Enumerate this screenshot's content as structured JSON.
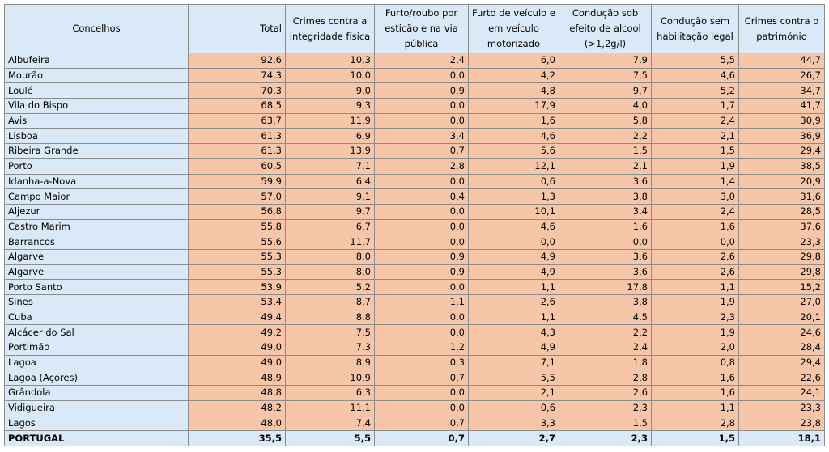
{
  "table": {
    "header": [
      "Concelhos",
      "Total",
      "Crimes contra a integridade física",
      "Furto/roubo por esticão e na via pública",
      "Furto de veículo e em veículo motorizado",
      "Condução sob efeito de alcool (>1,2g/l)",
      "Condução sem habilitação legal",
      "Crimes contra o património"
    ],
    "rows": [
      [
        "Albufeira",
        "92,6",
        "10,3",
        "2,4",
        "6,0",
        "7,9",
        "5,5",
        "44,7"
      ],
      [
        "Mourão",
        "74,3",
        "10,0",
        "0,0",
        "4,2",
        "7,5",
        "4,6",
        "26,7"
      ],
      [
        "Loulé",
        "70,3",
        "9,0",
        "0,9",
        "4,8",
        "9,7",
        "5,2",
        "34,7"
      ],
      [
        "Vila do Bispo",
        "68,5",
        "9,3",
        "0,0",
        "17,9",
        "4,0",
        "1,7",
        "41,7"
      ],
      [
        "Avis",
        "63,7",
        "11,9",
        "0,0",
        "1,6",
        "5,8",
        "2,4",
        "30,9"
      ],
      [
        "Lisboa",
        "61,3",
        "6,9",
        "3,4",
        "4,6",
        "2,2",
        "2,1",
        "36,9"
      ],
      [
        "Ribeira Grande",
        "61,3",
        "13,9",
        "0,7",
        "5,6",
        "1,5",
        "1,5",
        "29,4"
      ],
      [
        "Porto",
        "60,5",
        "7,1",
        "2,8",
        "12,1",
        "2,1",
        "1,9",
        "38,5"
      ],
      [
        "Idanha-a-Nova",
        "59,9",
        "6,4",
        "0,0",
        "0,6",
        "3,6",
        "1,4",
        "20,9"
      ],
      [
        "Campo Maior",
        "57,0",
        "9,1",
        "0,4",
        "1,3",
        "3,8",
        "3,0",
        "31,6"
      ],
      [
        "Aljezur",
        "56,8",
        "9,7",
        "0,0",
        "10,1",
        "3,4",
        "2,4",
        "28,5"
      ],
      [
        "Castro Marim",
        "55,8",
        "6,7",
        "0,0",
        "4,6",
        "1,6",
        "1,6",
        "37,6"
      ],
      [
        "Barrancos",
        "55,6",
        "11,7",
        "0,0",
        "0,0",
        "0,0",
        "0,0",
        "23,3"
      ],
      [
        "Algarve",
        "55,3",
        "8,0",
        "0,9",
        "4,9",
        "3,6",
        "2,6",
        "29,8"
      ],
      [
        "Algarve",
        "55,3",
        "8,0",
        "0,9",
        "4,9",
        "3,6",
        "2,6",
        "29,8"
      ],
      [
        "Porto Santo",
        "53,9",
        "5,2",
        "0,0",
        "1,1",
        "17,8",
        "1,1",
        "15,2"
      ],
      [
        "Sines",
        "53,4",
        "8,7",
        "1,1",
        "2,6",
        "3,8",
        "1,9",
        "27,0"
      ],
      [
        "Cuba",
        "49,4",
        "8,8",
        "0,0",
        "1,1",
        "4,5",
        "2,3",
        "20,1"
      ],
      [
        "Alcácer do Sal",
        "49,2",
        "7,5",
        "0,0",
        "4,3",
        "2,2",
        "1,9",
        "24,6"
      ],
      [
        "Portimão",
        "49,0",
        "7,3",
        "1,2",
        "4,9",
        "2,4",
        "2,0",
        "28,4"
      ],
      [
        "Lagoa",
        "49,0",
        "8,9",
        "0,3",
        "7,1",
        "1,8",
        "0,8",
        "29,4"
      ],
      [
        "Lagoa (Açores)",
        "48,9",
        "10,9",
        "0,7",
        "5,5",
        "2,8",
        "1,6",
        "22,6"
      ],
      [
        "Grândola",
        "48,8",
        "6,3",
        "0,0",
        "2,1",
        "2,6",
        "1,6",
        "24,1"
      ],
      [
        "Vidigueira",
        "48,2",
        "11,1",
        "0,0",
        "0,6",
        "2,3",
        "1,1",
        "23,3"
      ],
      [
        "Lagos",
        "48,0",
        "7,4",
        "0,7",
        "3,3",
        "1,5",
        "2,8",
        "23,8"
      ]
    ],
    "footer": [
      "PORTUGAL",
      "35,5",
      "5,5",
      "0,7",
      "2,7",
      "2,3",
      "1,5",
      "18,1"
    ]
  }
}
